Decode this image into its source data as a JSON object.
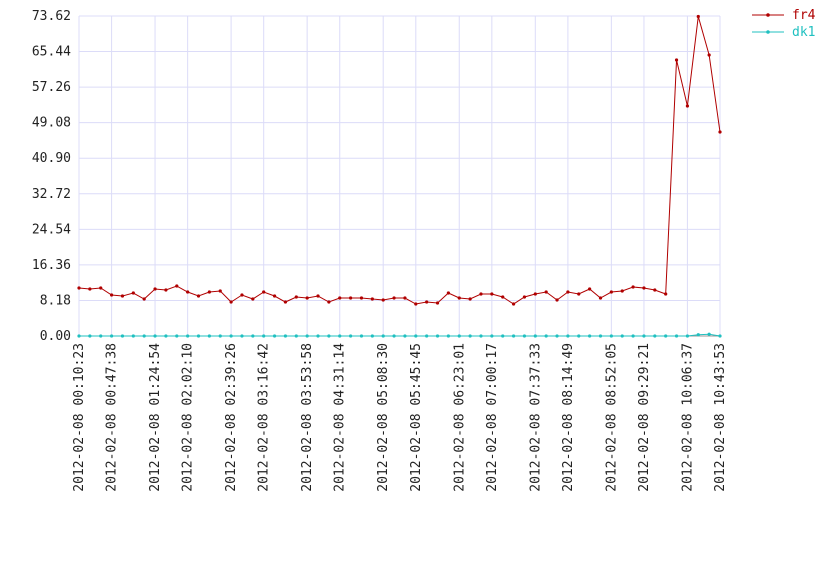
{
  "chart_data": {
    "type": "line",
    "categories": [
      "2012-02-08 00:10:23",
      null,
      null,
      "2012-02-08 00:47:38",
      null,
      null,
      null,
      "2012-02-08 01:24:54",
      null,
      null,
      "2012-02-08 02:02:10",
      null,
      null,
      null,
      "2012-02-08 02:39:26",
      null,
      null,
      "2012-02-08 03:16:42",
      null,
      null,
      null,
      "2012-02-08 03:53:58",
      null,
      null,
      "2012-02-08 04:31:14",
      null,
      null,
      null,
      "2012-02-08 05:08:30",
      null,
      null,
      "2012-02-08 05:45:45",
      null,
      null,
      null,
      "2012-02-08 06:23:01",
      null,
      null,
      "2012-02-08 07:00:17",
      null,
      null,
      null,
      "2012-02-08 07:37:33",
      null,
      null,
      "2012-02-08 08:14:49",
      null,
      null,
      null,
      "2012-02-08 08:52:05",
      null,
      null,
      "2012-02-08 09:29:21",
      null,
      null,
      null,
      "2012-02-08 10:06:37",
      null,
      null,
      "2012-02-08 10:43:53"
    ],
    "series": [
      {
        "name": "fr4",
        "color": "#b00000",
        "values": [
          11.04,
          10.81,
          11.04,
          9.43,
          9.2,
          9.89,
          8.51,
          10.81,
          10.58,
          11.5,
          10.12,
          9.2,
          10.12,
          10.35,
          7.82,
          9.43,
          8.51,
          10.12,
          9.2,
          7.82,
          8.97,
          8.74,
          9.2,
          7.82,
          8.74,
          8.74,
          8.74,
          8.51,
          8.28,
          8.74,
          8.74,
          7.36,
          7.82,
          7.59,
          9.89,
          8.74,
          8.51,
          9.66,
          9.66,
          8.97,
          7.36,
          8.97,
          9.66,
          10.12,
          8.28,
          10.12,
          9.66,
          10.81,
          8.74,
          10.12,
          10.35,
          11.27,
          11.04,
          10.58,
          9.66,
          63.5,
          52.92,
          73.5,
          64.65,
          46.93
        ]
      },
      {
        "name": "dk1",
        "color": "#20c0c0",
        "values": [
          0,
          0,
          0,
          0,
          0,
          0,
          0,
          0,
          0,
          0,
          0,
          0,
          0,
          0,
          0,
          0,
          0,
          0,
          0,
          0,
          0,
          0,
          0,
          0,
          0,
          0,
          0,
          0,
          0,
          0,
          0,
          0,
          0,
          0,
          0,
          0,
          0,
          0,
          0,
          0,
          0,
          0,
          0,
          0,
          0,
          0,
          0,
          0,
          0,
          0,
          0,
          0,
          0,
          0,
          0,
          0,
          0,
          0.3,
          0.4,
          0
        ]
      }
    ],
    "ylim": [
      0,
      73.62
    ],
    "yticks": [
      {
        "value": 0,
        "label": "0.00"
      },
      8.18,
      16.36,
      24.54,
      32.72,
      {
        "value": 40.9,
        "label": "40.90"
      },
      49.08,
      57.26,
      65.44,
      73.62
    ],
    "grid": true,
    "legend": "top-right"
  }
}
